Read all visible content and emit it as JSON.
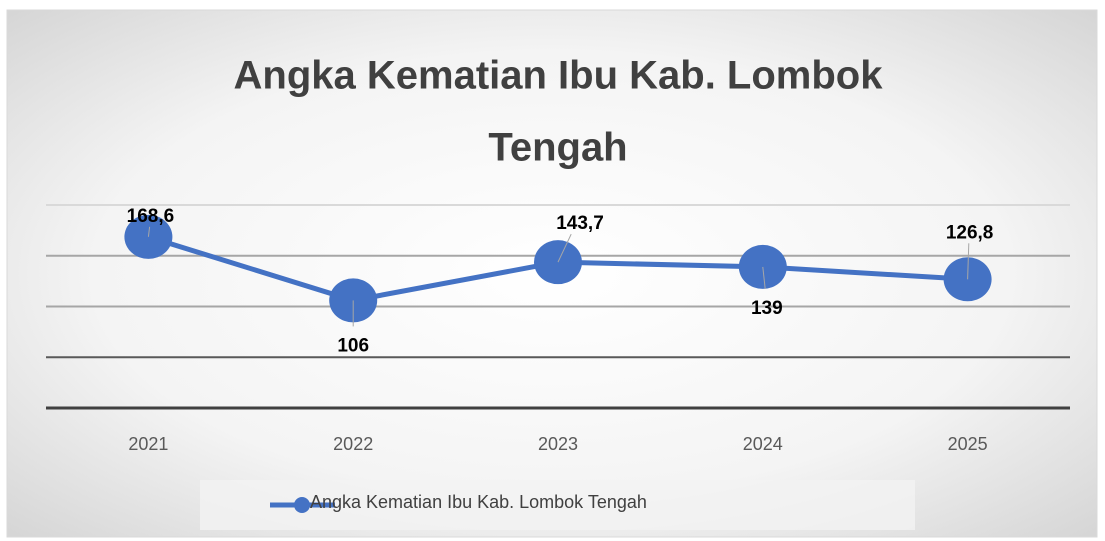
{
  "chart_data": {
    "type": "line",
    "title": "Angka Kematian Ibu Kab. Lombok Tengah",
    "categories": [
      "2021",
      "2022",
      "2023",
      "2024",
      "2025"
    ],
    "series": [
      {
        "name": "Angka Kematian Ibu Kab. Lombok Tengah",
        "color": "#4472c4",
        "values": [
          168.6,
          106,
          143.7,
          139,
          126.8
        ],
        "value_labels": [
          "168,6",
          "106",
          "143,7",
          "139",
          "126,8"
        ]
      }
    ],
    "ylim": [
      0,
      200
    ],
    "yticks": [
      0,
      50,
      100,
      150,
      200
    ],
    "grid": true,
    "legend": "bottom"
  }
}
